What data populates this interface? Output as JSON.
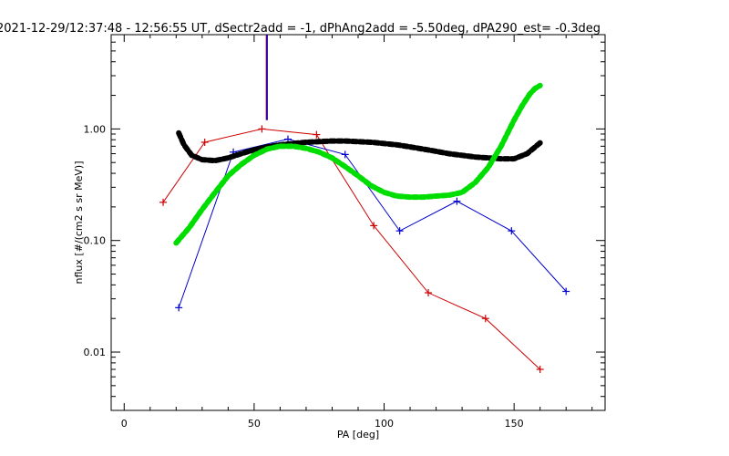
{
  "chart_data": {
    "type": "line",
    "title": "2021-12-29/12:37:48 - 12:56:55 UT, dSectr2add = -1, dPhAng2add = -5.50deg, dPA290_est=  -0.3deg",
    "xlabel": "PA [deg]",
    "ylabel": "nflux [#/(cm2 s sr MeV)]",
    "xlim": [
      -5,
      185
    ],
    "ylim": [
      0.003,
      7.0
    ],
    "yscale": "log",
    "grid": false,
    "x_ticks": [
      {
        "value": 0,
        "label": "0"
      },
      {
        "value": 50,
        "label": "50"
      },
      {
        "value": 100,
        "label": "100"
      },
      {
        "value": 150,
        "label": "150"
      }
    ],
    "y_ticks": [
      {
        "value": 0.01,
        "label": "0.01"
      },
      {
        "value": 0.1,
        "label": "0.10"
      },
      {
        "value": 1.0,
        "label": "1.00"
      }
    ],
    "series": [
      {
        "color": "#cc0000",
        "style": "line-plus",
        "x": [
          15,
          31,
          53,
          74,
          96,
          117,
          139,
          160
        ],
        "y": [
          0.22,
          0.76,
          1.0,
          0.89,
          0.136,
          0.034,
          0.02,
          0.007
        ]
      },
      {
        "color": "#0000cc",
        "style": "line-plus",
        "x": [
          21,
          42,
          63,
          85,
          106,
          128,
          149,
          170
        ],
        "y": [
          0.025,
          0.62,
          0.81,
          0.59,
          0.122,
          0.225,
          0.122,
          0.035
        ]
      },
      {
        "color": "#000000",
        "style": "thick-dots",
        "x": [
          21,
          23,
          26,
          30,
          35,
          40,
          45,
          50,
          55,
          60,
          65,
          70,
          75,
          80,
          85,
          90,
          95,
          100,
          105,
          110,
          115,
          120,
          125,
          130,
          135,
          140,
          145,
          150,
          155,
          160
        ],
        "y": [
          0.92,
          0.72,
          0.58,
          0.53,
          0.52,
          0.55,
          0.6,
          0.65,
          0.69,
          0.72,
          0.74,
          0.76,
          0.77,
          0.78,
          0.78,
          0.77,
          0.76,
          0.74,
          0.72,
          0.69,
          0.66,
          0.63,
          0.6,
          0.58,
          0.56,
          0.55,
          0.54,
          0.54,
          0.6,
          0.75
        ]
      },
      {
        "color": "#00dd00",
        "style": "thick-dots",
        "x": [
          20,
          25,
          30,
          35,
          40,
          45,
          50,
          55,
          60,
          65,
          70,
          75,
          80,
          85,
          90,
          95,
          100,
          105,
          110,
          115,
          120,
          125,
          130,
          135,
          140,
          145,
          150,
          153,
          156,
          158,
          160
        ],
        "y": [
          0.095,
          0.13,
          0.19,
          0.27,
          0.38,
          0.48,
          0.58,
          0.66,
          0.7,
          0.7,
          0.67,
          0.62,
          0.55,
          0.46,
          0.38,
          0.31,
          0.27,
          0.25,
          0.245,
          0.245,
          0.25,
          0.255,
          0.27,
          0.33,
          0.45,
          0.7,
          1.2,
          1.6,
          2.05,
          2.3,
          2.45
        ]
      }
    ],
    "marker_line": {
      "x": 55,
      "y_from": 1.2,
      "y_to": 7.0,
      "color_main": "#0000cc",
      "color_edge": "#cc0000"
    }
  }
}
